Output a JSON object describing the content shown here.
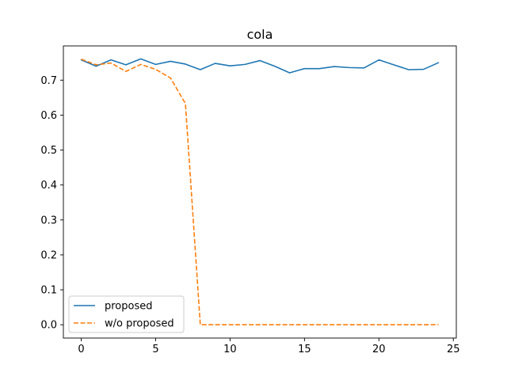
{
  "chart_data": {
    "type": "line",
    "title": "cola",
    "xlabel": "",
    "ylabel": "",
    "xlim": [
      -1.2,
      25.2
    ],
    "ylim": [
      -0.038,
      0.798
    ],
    "xticks": [
      "0",
      "5",
      "10",
      "15",
      "20",
      "25"
    ],
    "xtick_values": [
      0,
      5,
      10,
      15,
      20,
      25
    ],
    "yticks": [
      "0.0",
      "0.1",
      "0.2",
      "0.3",
      "0.4",
      "0.5",
      "0.6",
      "0.7"
    ],
    "ytick_values": [
      0.0,
      0.1,
      0.2,
      0.3,
      0.4,
      0.5,
      0.6,
      0.7
    ],
    "grid": false,
    "legend_position": "lower-left",
    "x": [
      0,
      1,
      2,
      3,
      4,
      5,
      6,
      7,
      8,
      9,
      10,
      11,
      12,
      13,
      14,
      15,
      16,
      17,
      18,
      19,
      20,
      21,
      22,
      23,
      24
    ],
    "series": [
      {
        "name": "proposed",
        "color": "#1f77b4",
        "style": "solid",
        "values": [
          0.758,
          0.74,
          0.758,
          0.744,
          0.761,
          0.745,
          0.754,
          0.746,
          0.73,
          0.748,
          0.741,
          0.745,
          0.756,
          0.74,
          0.721,
          0.733,
          0.733,
          0.739,
          0.736,
          0.735,
          0.758,
          0.744,
          0.73,
          0.731,
          0.75
        ]
      },
      {
        "name": "w/o proposed",
        "color": "#ff7f0e",
        "style": "dashed",
        "values": [
          0.76,
          0.744,
          0.749,
          0.725,
          0.745,
          0.731,
          0.706,
          0.633,
          0.0,
          0.0,
          0.0,
          0.0,
          0.0,
          0.0,
          0.0,
          0.0,
          0.0,
          0.0,
          0.0,
          0.0,
          0.0,
          0.0,
          0.0,
          0.0,
          0.0
        ]
      }
    ]
  }
}
